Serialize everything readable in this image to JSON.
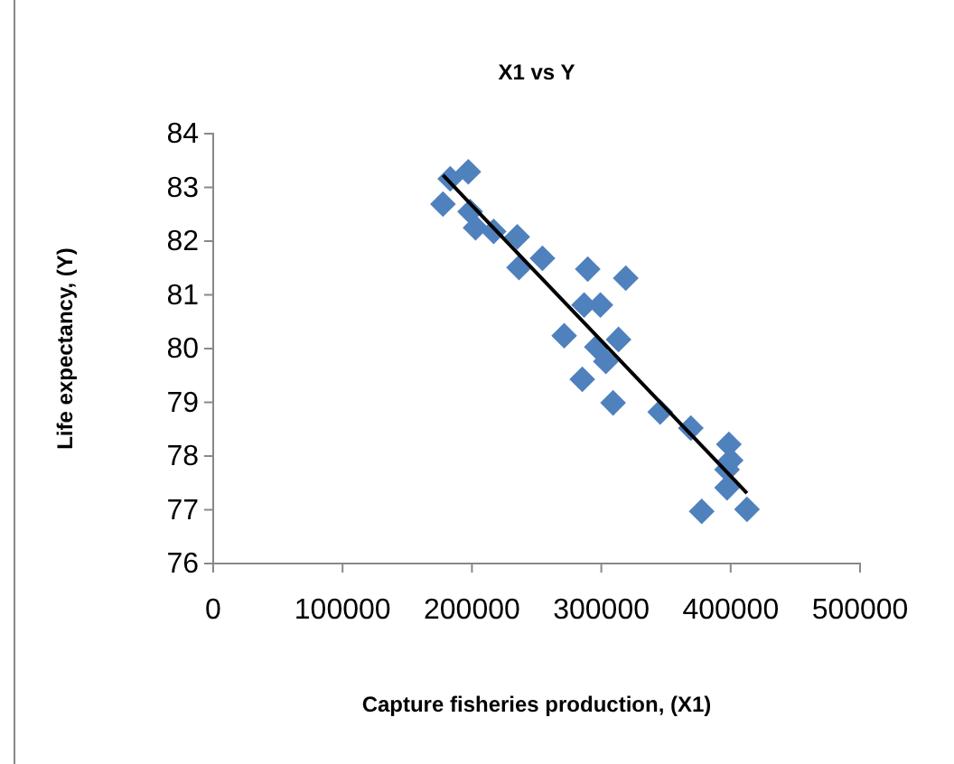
{
  "chart_data": {
    "type": "scatter",
    "title": "X1 vs Y",
    "xlabel": "Capture fisheries production, (X1)",
    "ylabel": "Life expectancy, (Y)",
    "xlim": [
      0,
      500000
    ],
    "xticks": [
      0,
      100000,
      200000,
      300000,
      400000,
      500000
    ],
    "ylim": [
      76,
      84
    ],
    "yticks": [
      76,
      77,
      78,
      79,
      80,
      81,
      82,
      83,
      84
    ],
    "grid": false,
    "marker": "diamond",
    "series": [
      {
        "color": "#4f81bd",
        "x": [
          177600,
          183200,
          197200,
          198600,
          202800,
          216800,
          235000,
          236400,
          254500,
          289500,
          318900,
          286700,
          299300,
          271300,
          296500,
          313300,
          303500,
          285300,
          309100,
          345500,
          369200,
          398600,
          400000,
          397200,
          397200,
          377600,
          412600
        ],
        "values": [
          82.69,
          83.16,
          83.29,
          82.55,
          82.25,
          82.18,
          82.08,
          81.51,
          81.68,
          81.48,
          81.31,
          80.81,
          80.81,
          80.24,
          80.03,
          80.17,
          79.76,
          79.43,
          78.99,
          78.82,
          78.52,
          78.22,
          77.92,
          77.75,
          77.41,
          76.97,
          77.01
        ]
      },
      {
        "type": "line",
        "color": "#000000",
        "marker": "none",
        "line_style": "solid",
        "x": [
          177600,
          412600
        ],
        "values": [
          83.23,
          77.31
        ]
      }
    ]
  }
}
